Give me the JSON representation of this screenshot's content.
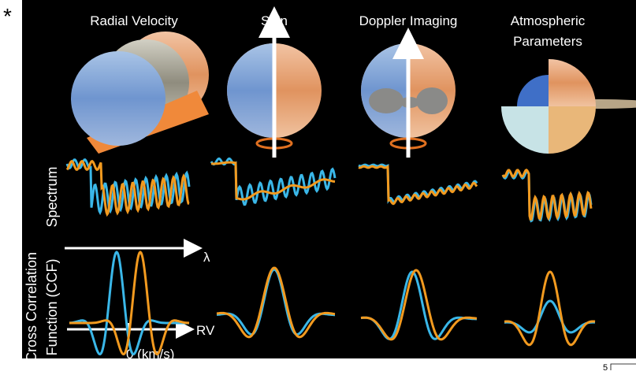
{
  "marker": "*",
  "columns": [
    {
      "title_lines": [
        "Radial Velocity"
      ]
    },
    {
      "title_lines": [
        "Spin"
      ]
    },
    {
      "title_lines": [
        "Doppler Imaging"
      ]
    },
    {
      "title_lines": [
        "Atmospheric",
        "Parameters"
      ]
    }
  ],
  "row_labels": {
    "spectrum": [
      "Spectrum"
    ],
    "ccf": [
      "Cross Correlation",
      "Function (CCF)"
    ]
  },
  "axes": {
    "wavelength": "λ",
    "rv": "RV",
    "zero": "0 (km/s)"
  },
  "page_number": "5"
}
